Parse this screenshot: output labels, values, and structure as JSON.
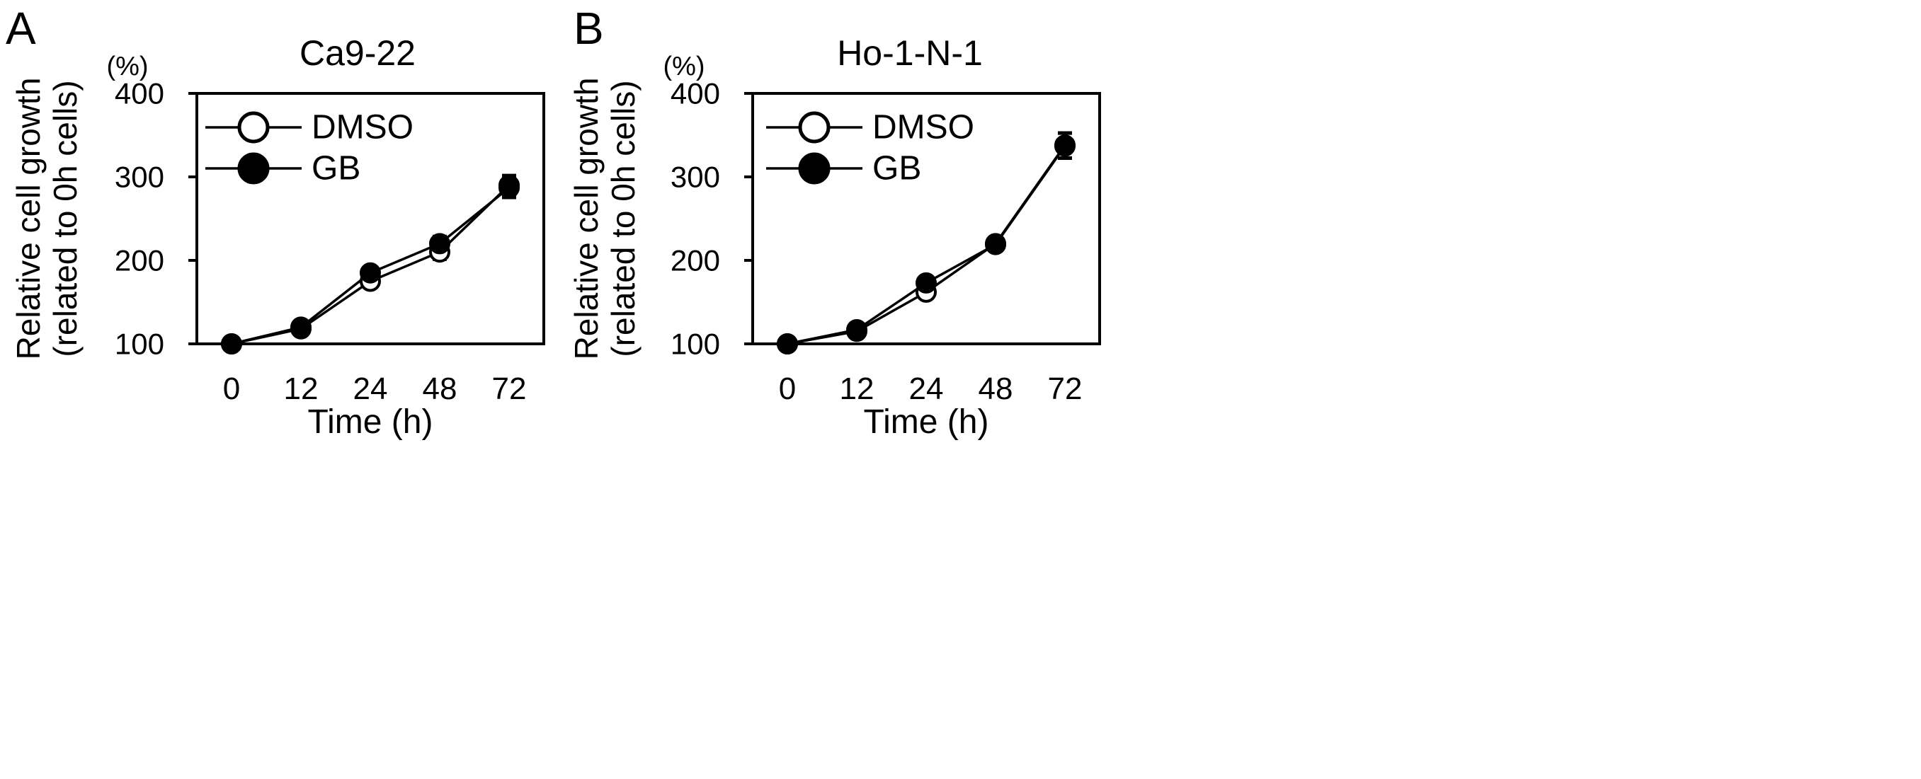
{
  "figure": {
    "panel_labels": [
      "A",
      "B"
    ]
  },
  "colors": {
    "axis": "#000000",
    "marker_open_fill": "#ffffff",
    "marker_filled": "#000000"
  },
  "chart_data": [
    {
      "type": "line",
      "panel": "A",
      "title": "Ca9-22",
      "unit_label": "(%)",
      "ylabel_line1": "Relative cell growth",
      "ylabel_line2": "(related to 0h cells)",
      "xlabel": "Time (h)",
      "categories": [
        "0",
        "12",
        "24",
        "48",
        "72"
      ],
      "ylim": [
        100,
        400
      ],
      "yticks": [
        100,
        200,
        300,
        400
      ],
      "grid": false,
      "legend_position": "top-left",
      "series": [
        {
          "name": "DMSO",
          "marker": "open-circle",
          "values": [
            100,
            118,
            175,
            210,
            290
          ],
          "errors": [
            2,
            4,
            7,
            9,
            12
          ]
        },
        {
          "name": "GB",
          "marker": "filled-circle",
          "values": [
            100,
            120,
            185,
            220,
            287
          ],
          "errors": [
            2,
            4,
            7,
            9,
            12
          ]
        }
      ]
    },
    {
      "type": "line",
      "panel": "B",
      "title": "Ho-1-N-1",
      "unit_label": "(%)",
      "ylabel_line1": "Relative cell growth",
      "ylabel_line2": "(related to 0h cells)",
      "xlabel": "Time (h)",
      "categories": [
        "0",
        "12",
        "24",
        "48",
        "72"
      ],
      "ylim": [
        100,
        400
      ],
      "yticks": [
        100,
        200,
        300,
        400
      ],
      "grid": false,
      "legend_position": "top-left",
      "series": [
        {
          "name": "DMSO",
          "marker": "open-circle",
          "values": [
            100,
            115,
            162,
            220,
            338
          ],
          "errors": [
            2,
            3,
            5,
            8,
            15
          ]
        },
        {
          "name": "GB",
          "marker": "filled-circle",
          "values": [
            100,
            117,
            173,
            219,
            337
          ],
          "errors": [
            2,
            3,
            5,
            8,
            15
          ]
        }
      ]
    }
  ]
}
